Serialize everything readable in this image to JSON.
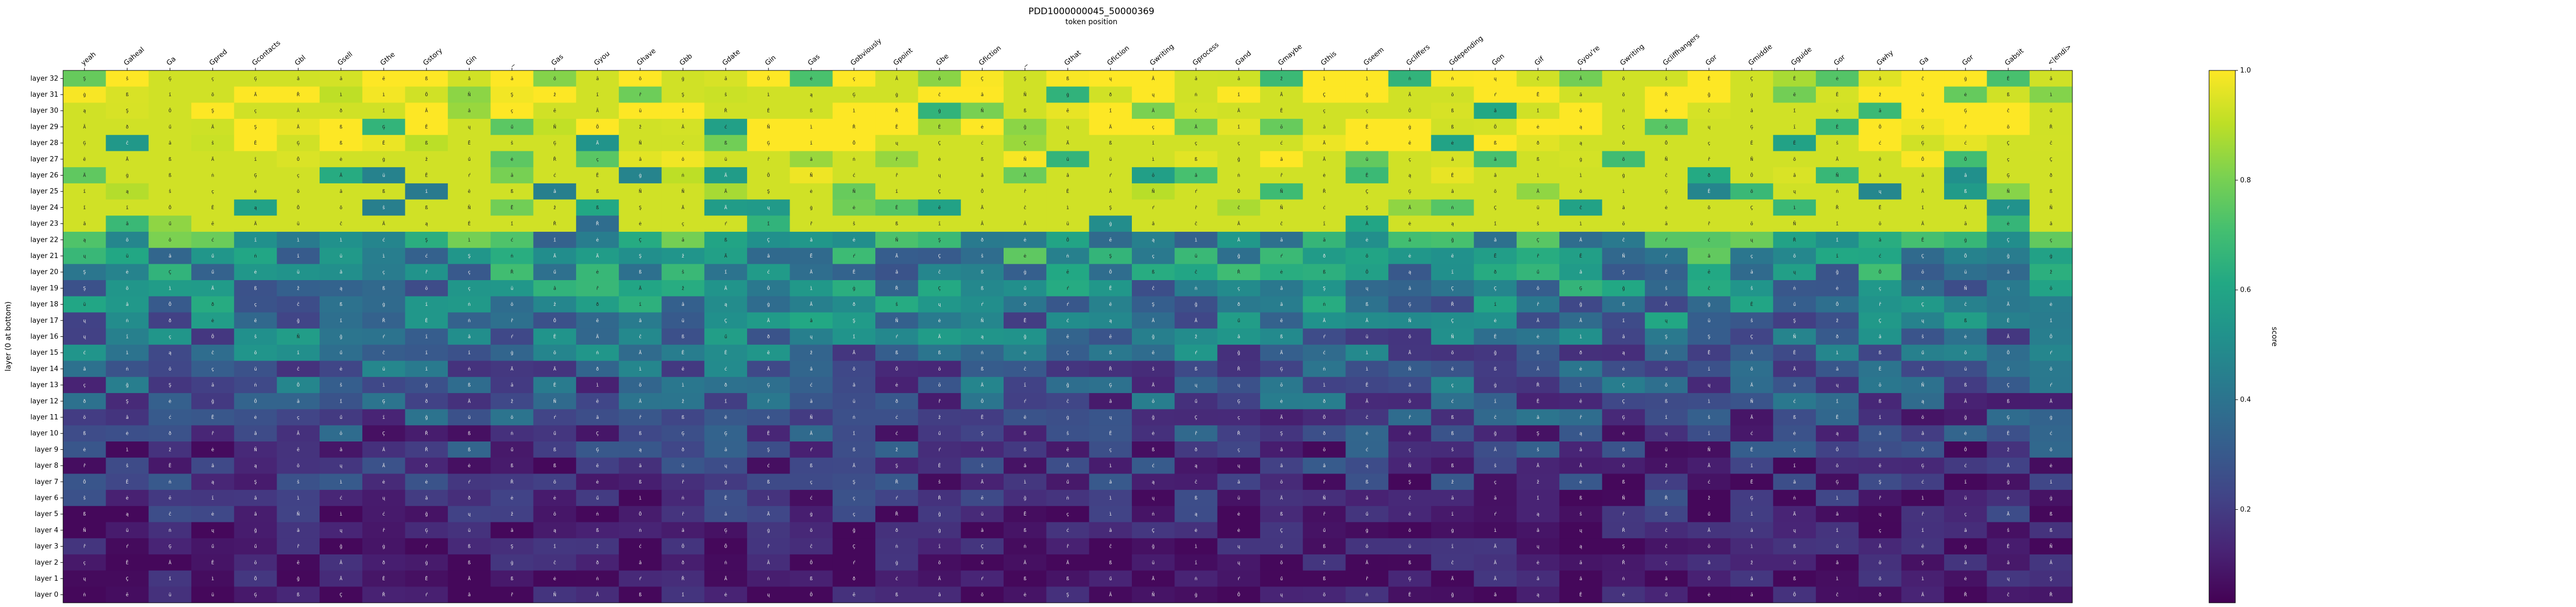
{
  "chart_data": {
    "type": "heatmap",
    "title": "PDD1000000045_50000369",
    "xlabel": "token position",
    "ylabel": "layer (0 at bottom)",
    "colorbar_label": "score",
    "colorbar_ticks": [
      "0.2",
      "0.4",
      "0.6",
      "0.8",
      "1.0"
    ],
    "colorbar_range": [
      0.03,
      1.0
    ],
    "colormap": "viridis",
    "x_labels": [
      "yeah",
      "Gaheal",
      "Ga",
      "Gpred",
      "Gcontacts",
      "Gbl",
      "Gsell",
      "Gthe",
      "Gstory",
      "Gin",
      "_",
      "Gas",
      "Gyou",
      "Ghave",
      "Gbb",
      "Gdate",
      "Gin",
      "Gas",
      "Gobviously",
      "Gpoint",
      "Gbe",
      "Gfiction",
      "_",
      "Gthat",
      "Gfiction",
      "Gwriting",
      "Gprocess",
      "Gand",
      "Gmaybe",
      "Gthis",
      "Gseem",
      "Gcliffers",
      "Gdepending",
      "Gon",
      "Gif",
      "Gyou're",
      "Gwriting",
      "Gcliffhangers",
      "Gor",
      "Gmiddle",
      "Gguide",
      "Gor",
      "Gwhy",
      "Ga",
      "Gor",
      "Gabsit",
      "<|endi>"
    ],
    "y_labels": [
      "layer 32",
      "layer 31",
      "layer 30",
      "layer 29",
      "layer 28",
      "layer 27",
      "layer 26",
      "layer 25",
      "layer 24",
      "layer 23",
      "layer 22",
      "layer 21",
      "layer 20",
      "layer 19",
      "layer 18",
      "layer 17",
      "layer 16",
      "layer 15",
      "layer 14",
      "layer 13",
      "layer 12",
      "layer 11",
      "layer 10",
      "layer 9",
      "layer 8",
      "layer 7",
      "layer 6",
      "layer 5",
      "layer 4",
      "layer 3",
      "layer 2",
      "layer 1",
      "layer 0"
    ],
    "cell_text_pool": [
      "ß",
      "Ä",
      "ė",
      "Ê",
      "Ñ",
      "ç",
      "ǐ",
      "ī",
      "ć",
      "Ō",
      "õ",
      "ō",
      "ü",
      "â",
      "Ř",
      "Ä",
      "ē",
      "ŕ",
      "ű",
      "Ç",
      "Ē",
      "ð",
      "ė",
      "ğ",
      "ġ",
      "Ģ",
      "ì",
      "ŝ",
      "ž",
      "ā",
      "â",
      "Ā",
      "Ş",
      "ř",
      "ß",
      "ĉ",
      "ų",
      "ą",
      "ṅ"
    ],
    "grid": false
  }
}
